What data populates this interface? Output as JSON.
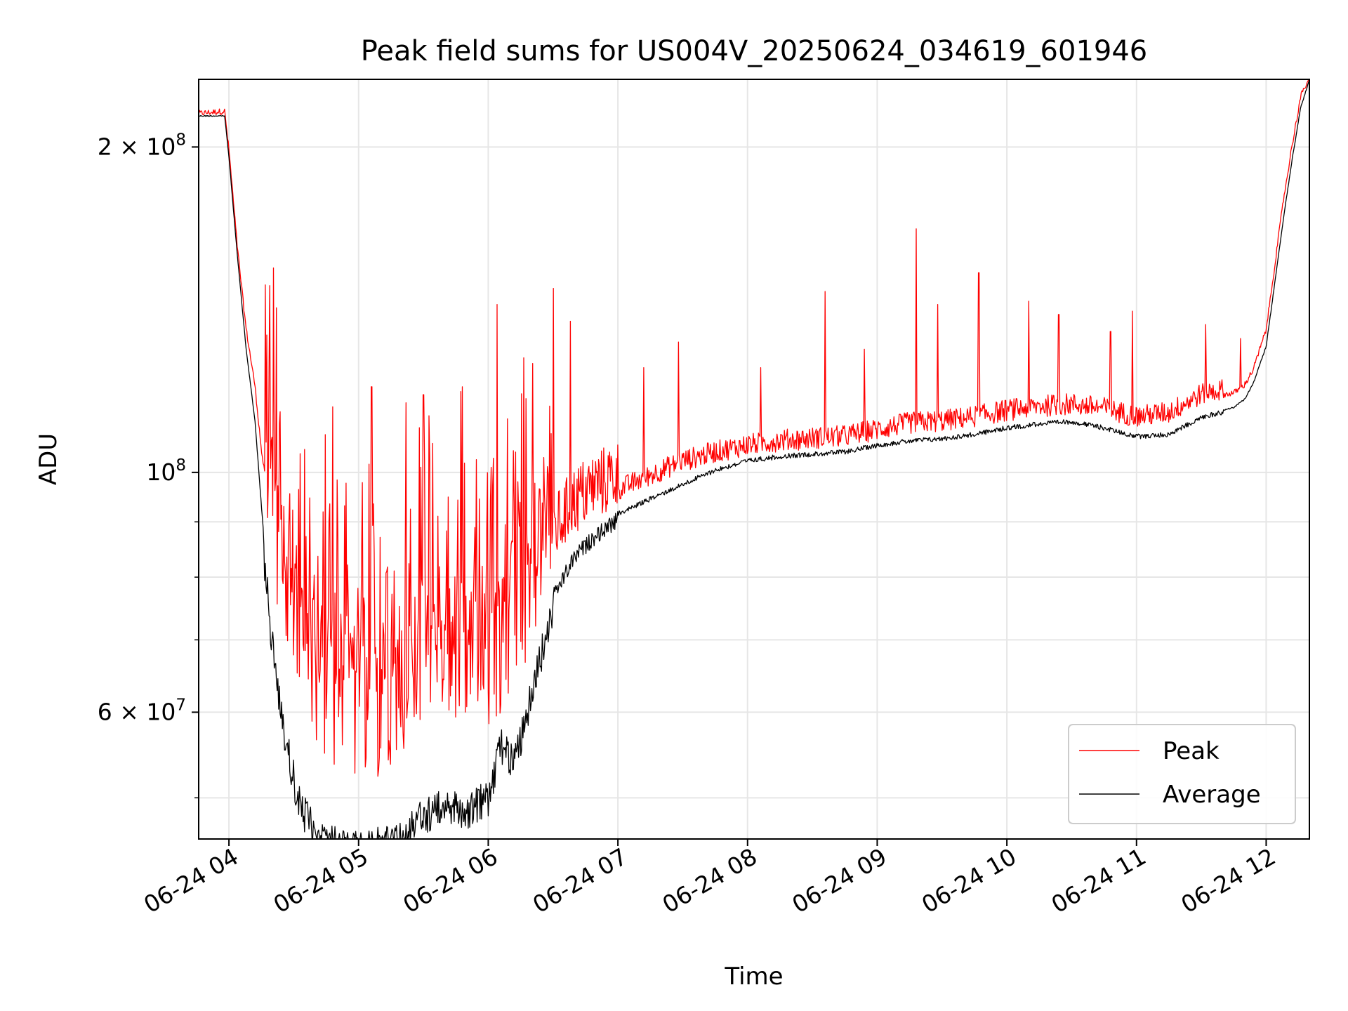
{
  "chart_data": {
    "type": "line",
    "title": "Peak field sums for US004V_20250624_034619_601946",
    "xlabel": "Time",
    "ylabel": "ADU",
    "yscale": "log",
    "grid": true,
    "legend_position": "bottom-right",
    "xlim": [
      "06-24 03:46",
      "06-24 12:20"
    ],
    "ylim": [
      45800000,
      231000000
    ],
    "x_ticks": [
      "06-24 04",
      "06-24 05",
      "06-24 06",
      "06-24 07",
      "06-24 08",
      "06-24 09",
      "06-24 10",
      "06-24 11",
      "06-24 12"
    ],
    "y_ticks": [
      {
        "value": 60000000,
        "label": "6 × 10",
        "exp": "7"
      },
      {
        "value": 100000000,
        "label": "10",
        "exp": "8"
      },
      {
        "value": 200000000,
        "label": "2 × 10",
        "exp": "8"
      }
    ],
    "y_minor_ticks": [
      50000000,
      70000000,
      80000000,
      90000000
    ],
    "series": [
      {
        "name": "Peak",
        "color": "#ff0000",
        "x": [
          "03:46",
          "03:58",
          "04:00",
          "04:04",
          "04:08",
          "04:12",
          "04:16",
          "04:20",
          "04:26",
          "04:32",
          "04:40",
          "04:50",
          "05:00",
          "05:10",
          "05:20",
          "05:30",
          "05:40",
          "05:50",
          "06:00",
          "06:06",
          "06:12",
          "06:18",
          "06:24",
          "06:30",
          "06:40",
          "06:50",
          "07:00",
          "07:15",
          "07:30",
          "07:45",
          "08:00",
          "08:15",
          "08:30",
          "08:45",
          "09:00",
          "09:15",
          "09:30",
          "09:45",
          "10:00",
          "10:15",
          "10:30",
          "10:45",
          "11:00",
          "11:15",
          "11:30",
          "11:45",
          "11:50",
          "11:54",
          "12:00",
          "12:04",
          "12:08",
          "12:12",
          "12:16",
          "12:20"
        ],
        "y": [
          214000000,
          215000000,
          198000000,
          160000000,
          135000000,
          120000000,
          100000000,
          85000000,
          73000000,
          66000000,
          60000000,
          57000000,
          56000000,
          56000000,
          58000000,
          63000000,
          64000000,
          63000000,
          61000000,
          64000000,
          68000000,
          72000000,
          79000000,
          84000000,
          90000000,
          93000000,
          95000000,
          98000000,
          101000000,
          103000000,
          104500000,
          105500000,
          106000000,
          106500000,
          108000000,
          109500000,
          110000000,
          111000000,
          112500000,
          113500000,
          114000000,
          113000000,
          111000000,
          112000000,
          116500000,
          118000000,
          120000000,
          124000000,
          135000000,
          155000000,
          178000000,
          200000000,
          222000000,
          231000000
        ],
        "spikes": [
          {
            "x": "04:22",
            "y": 142000000
          },
          {
            "x": "04:35",
            "y": 105000000
          },
          {
            "x": "04:48",
            "y": 115000000
          },
          {
            "x": "05:06",
            "y": 120000000
          },
          {
            "x": "05:22",
            "y": 116000000
          },
          {
            "x": "05:30",
            "y": 118000000
          },
          {
            "x": "05:48",
            "y": 120000000
          },
          {
            "x": "06:04",
            "y": 143000000
          },
          {
            "x": "06:30",
            "y": 148000000
          },
          {
            "x": "06:38",
            "y": 138000000
          },
          {
            "x": "07:12",
            "y": 125000000
          },
          {
            "x": "07:28",
            "y": 132000000
          },
          {
            "x": "08:06",
            "y": 125000000
          },
          {
            "x": "08:36",
            "y": 147000000
          },
          {
            "x": "08:54",
            "y": 130000000
          },
          {
            "x": "09:18",
            "y": 168000000
          },
          {
            "x": "09:28",
            "y": 143000000
          },
          {
            "x": "09:47",
            "y": 153000000
          },
          {
            "x": "10:10",
            "y": 144000000
          },
          {
            "x": "10:24",
            "y": 140000000
          },
          {
            "x": "10:48",
            "y": 135000000
          },
          {
            "x": "10:58",
            "y": 141000000
          },
          {
            "x": "11:32",
            "y": 137000000
          },
          {
            "x": "11:48",
            "y": 133000000
          }
        ]
      },
      {
        "name": "Average",
        "color": "#000000",
        "x": [
          "03:46",
          "03:58",
          "04:00",
          "04:04",
          "04:08",
          "04:12",
          "04:16",
          "04:20",
          "04:26",
          "04:32",
          "04:40",
          "04:50",
          "05:00",
          "05:10",
          "05:20",
          "05:30",
          "05:40",
          "05:50",
          "06:00",
          "06:06",
          "06:12",
          "06:18",
          "06:24",
          "06:30",
          "06:40",
          "06:50",
          "07:00",
          "07:15",
          "07:30",
          "07:45",
          "08:00",
          "08:15",
          "08:30",
          "08:45",
          "09:00",
          "09:15",
          "09:30",
          "09:45",
          "10:00",
          "10:15",
          "10:30",
          "10:45",
          "11:00",
          "11:15",
          "11:30",
          "11:45",
          "11:50",
          "11:54",
          "12:00",
          "12:04",
          "12:08",
          "12:12",
          "12:16",
          "12:20"
        ],
        "y": [
          214000000,
          214000000,
          196000000,
          158000000,
          130000000,
          112000000,
          88000000,
          72000000,
          59000000,
          52000000,
          48000000,
          47000000,
          47000000,
          47000000,
          47500000,
          50000000,
          51000000,
          50500000,
          52000000,
          58000000,
          56000000,
          62000000,
          70000000,
          78000000,
          85000000,
          89000000,
          92000000,
          95000000,
          98000000,
          101000000,
          103000000,
          104000000,
          104500000,
          105000000,
          106500000,
          107500000,
          108000000,
          109000000,
          110500000,
          111500000,
          112000000,
          110500000,
          108500000,
          109000000,
          113000000,
          115000000,
          117000000,
          121000000,
          131000000,
          150000000,
          172000000,
          195000000,
          218000000,
          231000000
        ],
        "dips": [
          {
            "x": "04:35",
            "y": 46500000
          },
          {
            "x": "04:58",
            "y": 46200000
          },
          {
            "x": "05:15",
            "y": 46300000
          },
          {
            "x": "06:14",
            "y": 54500000
          }
        ]
      }
    ]
  }
}
